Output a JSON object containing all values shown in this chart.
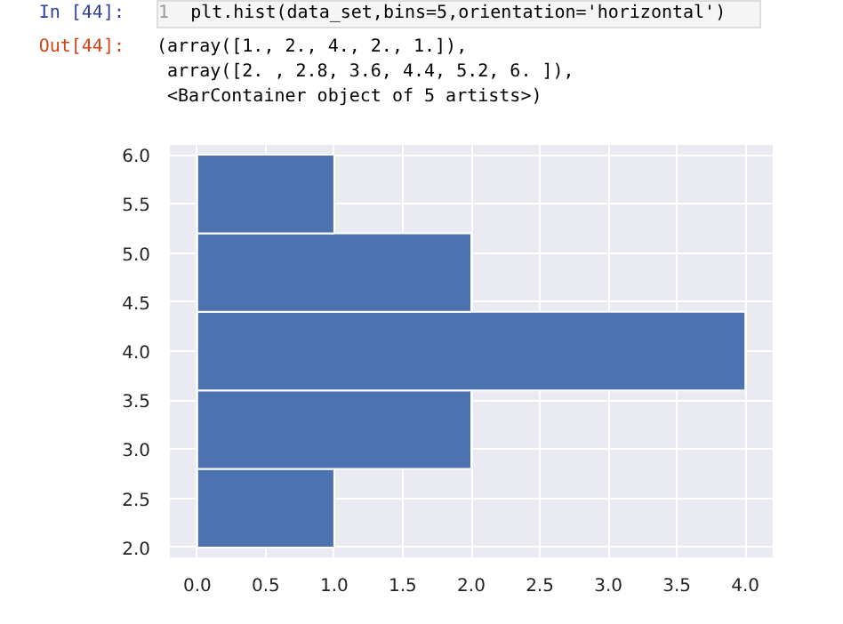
{
  "chart_data": {
    "type": "histogram",
    "orientation": "horizontal",
    "bins": [
      2,
      2.8,
      3.6,
      4.4,
      5.2,
      6
    ],
    "values": [
      1,
      2,
      4,
      2,
      1
    ],
    "color": "#4c72b0",
    "xlim": [
      -0.2,
      4.2
    ],
    "ylim": [
      1.9,
      6.1
    ],
    "xticks": [
      {
        "value": 0,
        "label": "0.0"
      },
      {
        "value": 0.5,
        "label": "0.5"
      },
      {
        "value": 1,
        "label": "1.0"
      },
      {
        "value": 1.5,
        "label": "1.5"
      },
      {
        "value": 2,
        "label": "2.0"
      },
      {
        "value": 2.5,
        "label": "2.5"
      },
      {
        "value": 3,
        "label": "3.0"
      },
      {
        "value": 3.5,
        "label": "3.5"
      },
      {
        "value": 4,
        "label": "4.0"
      }
    ],
    "yticks": [
      {
        "value": 2,
        "label": "2.0"
      },
      {
        "value": 2.5,
        "label": "2.5"
      },
      {
        "value": 3,
        "label": "3.0"
      },
      {
        "value": 3.5,
        "label": "3.5"
      },
      {
        "value": 4,
        "label": "4.0"
      },
      {
        "value": 4.5,
        "label": "4.5"
      },
      {
        "value": 5,
        "label": "5.0"
      },
      {
        "value": 5.5,
        "label": "5.5"
      },
      {
        "value": 6,
        "label": "6.0"
      }
    ],
    "grid": true,
    "annotations": [
      "In [44]:",
      "1",
      "plt.hist(data_set,bins=5,orientation='horizontal')",
      "Out[44]:",
      "(array([1., 2., 4., 2., 1.]),",
      " array([2. , 2.8, 3.6, 4.4, 5.2, 6. ]),",
      " <BarContainer object of 5 artists>)"
    ]
  }
}
